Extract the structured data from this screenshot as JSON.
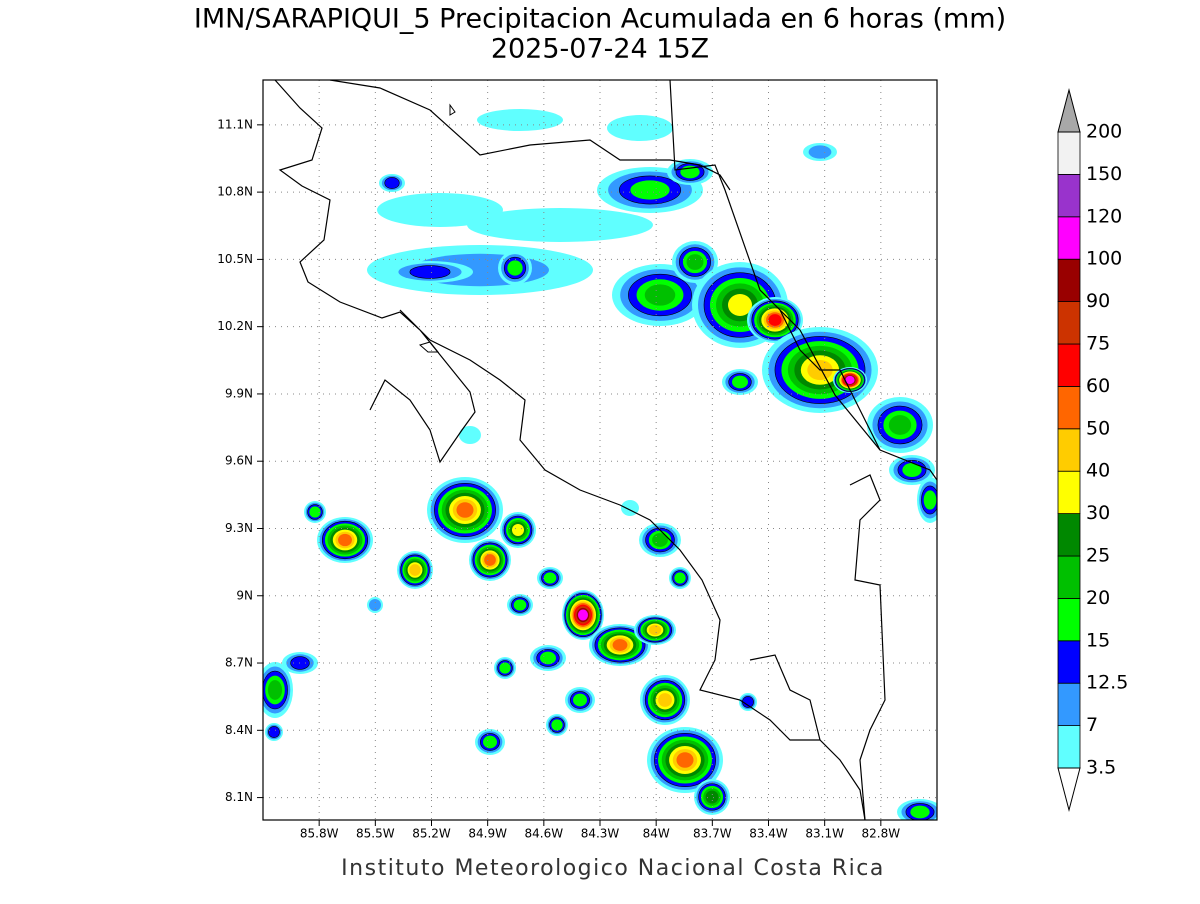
{
  "title": "IMN/SARAPIQUI_5 Precipitacion Acumulada en 6 horas (mm)",
  "subtitle": "2025-07-24 15Z",
  "footer": "Instituto Meteorologico Nacional Costa Rica",
  "map": {
    "lon_range": [
      -86.1,
      -82.5
    ],
    "lat_range": [
      8.0,
      11.3
    ],
    "grid": true,
    "lon_ticks": [
      {
        "value": -85.8,
        "label": "85.8W"
      },
      {
        "value": -85.5,
        "label": "85.5W"
      },
      {
        "value": -85.2,
        "label": "85.2W"
      },
      {
        "value": -84.9,
        "label": "84.9W"
      },
      {
        "value": -84.6,
        "label": "84.6W"
      },
      {
        "value": -84.3,
        "label": "84.3W"
      },
      {
        "value": -84.0,
        "label": "84W"
      },
      {
        "value": -83.7,
        "label": "83.7W"
      },
      {
        "value": -83.4,
        "label": "83.4W"
      },
      {
        "value": -83.1,
        "label": "83.1W"
      },
      {
        "value": -82.8,
        "label": "82.8W"
      }
    ],
    "lat_ticks": [
      {
        "value": 11.1,
        "label": "11.1N"
      },
      {
        "value": 10.8,
        "label": "10.8N"
      },
      {
        "value": 10.5,
        "label": "10.5N"
      },
      {
        "value": 10.2,
        "label": "10.2N"
      },
      {
        "value": 9.9,
        "label": "9.9N"
      },
      {
        "value": 9.6,
        "label": "9.6N"
      },
      {
        "value": 9.3,
        "label": "9.3N"
      },
      {
        "value": 9.0,
        "label": "9N"
      },
      {
        "value": 8.7,
        "label": "8.7N"
      },
      {
        "value": 8.4,
        "label": "8.4N"
      },
      {
        "value": 8.1,
        "label": "8.1N"
      }
    ]
  },
  "colorbar": {
    "levels": [
      3.5,
      7,
      12.5,
      15,
      20,
      25,
      30,
      40,
      50,
      60,
      75,
      90,
      100,
      120,
      150,
      200
    ],
    "colors": [
      "#60ffff",
      "#3399ff",
      "#0000ff",
      "#00ff00",
      "#00c000",
      "#008800",
      "#ffff00",
      "#ffcc00",
      "#ff6600",
      "#ff0000",
      "#cc3300",
      "#990000",
      "#ff00ff",
      "#9933cc",
      "#f2f2f2"
    ],
    "under_color": "#ffffff",
    "over_color": "#a8a8a8"
  }
}
